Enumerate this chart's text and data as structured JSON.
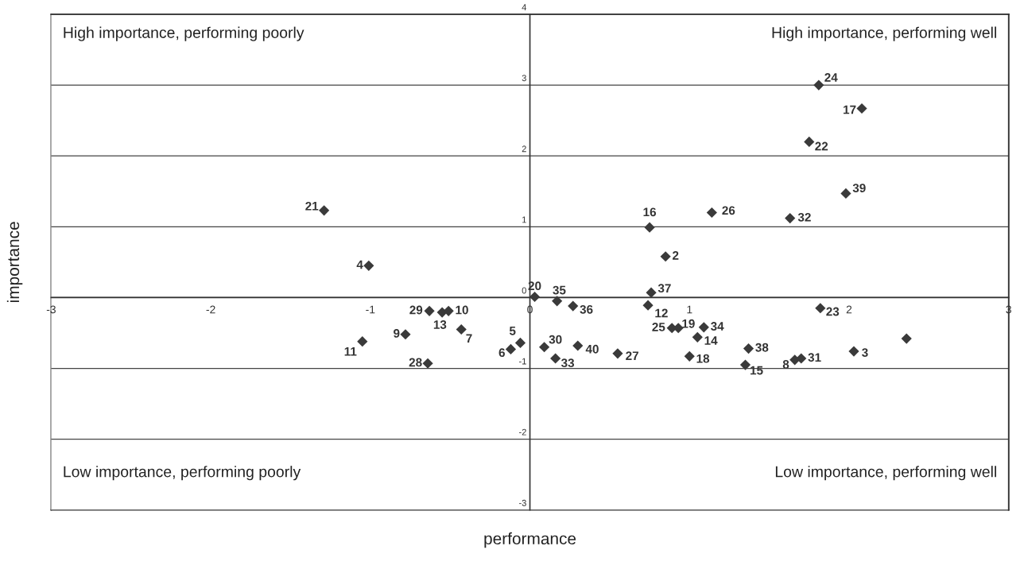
{
  "chart_data": {
    "type": "scatter",
    "xlabel": "performance",
    "ylabel": "importance",
    "xlim": [
      -3,
      3
    ],
    "ylim": [
      -3,
      4
    ],
    "xticks": [
      -3,
      -2,
      -1,
      0,
      1,
      2,
      3
    ],
    "yticks": [
      -3,
      -2,
      -1,
      0,
      1,
      2,
      3,
      4
    ],
    "grid": "y",
    "marker": "diamond",
    "series": [
      {
        "color": "#3a3a3a",
        "x": [
          1.81,
          2.08,
          1.75,
          1.98,
          1.63,
          1.14,
          0.75,
          0.85,
          0.76,
          0.74,
          1.82,
          -1.29,
          -1.01,
          0.03,
          0.17,
          0.27,
          -0.63,
          -0.55,
          -0.51,
          -0.43,
          -0.78,
          -1.05,
          -0.64,
          -0.06,
          -0.12,
          0.09,
          0.16,
          0.3,
          0.55,
          0.89,
          0.93,
          1.09,
          1.05,
          1.0,
          1.37,
          1.35,
          1.66,
          1.7,
          2.03,
          2.36
        ],
        "values": [
          3.0,
          2.67,
          2.2,
          1.47,
          1.12,
          1.2,
          0.99,
          0.58,
          0.07,
          -0.11,
          -0.15,
          1.23,
          0.45,
          0.01,
          -0.05,
          -0.12,
          -0.19,
          -0.21,
          -0.19,
          -0.45,
          -0.52,
          -0.62,
          -0.93,
          -0.64,
          -0.73,
          -0.7,
          -0.86,
          -0.68,
          -0.79,
          -0.43,
          -0.43,
          -0.42,
          -0.56,
          -0.83,
          -0.72,
          -0.95,
          -0.88,
          -0.86,
          -0.76,
          -0.58
        ]
      }
    ],
    "annotations": [
      "High importance, performing poorly",
      "High importance, performing well",
      "Low importance, performing poorly",
      "Low importance, performing well",
      {
        "text": "24",
        "x": 1.81,
        "y": 3.0
      },
      {
        "text": "17",
        "x": 2.08,
        "y": 2.67
      },
      {
        "text": "22",
        "x": 1.75,
        "y": 2.2
      },
      {
        "text": "39",
        "x": 1.98,
        "y": 1.47
      },
      {
        "text": "32",
        "x": 1.63,
        "y": 1.12
      },
      {
        "text": "26",
        "x": 1.14,
        "y": 1.2
      },
      {
        "text": "16",
        "x": 0.75,
        "y": 0.99
      },
      {
        "text": "2",
        "x": 0.85,
        "y": 0.58
      },
      {
        "text": "37",
        "x": 0.76,
        "y": 0.07
      },
      {
        "text": "12",
        "x": 0.74,
        "y": -0.11
      },
      {
        "text": "23",
        "x": 1.82,
        "y": -0.15
      },
      {
        "text": "21",
        "x": -1.29,
        "y": 1.23
      },
      {
        "text": "4",
        "x": -1.01,
        "y": 0.45
      },
      {
        "text": "20",
        "x": 0.03,
        "y": 0.01
      },
      {
        "text": "35",
        "x": 0.17,
        "y": -0.05
      },
      {
        "text": "36",
        "x": 0.27,
        "y": -0.12
      },
      {
        "text": "29",
        "x": -0.63,
        "y": -0.19
      },
      {
        "text": "13",
        "x": -0.55,
        "y": -0.21
      },
      {
        "text": "10",
        "x": -0.51,
        "y": -0.19
      },
      {
        "text": "7",
        "x": -0.43,
        "y": -0.45
      },
      {
        "text": "9",
        "x": -0.78,
        "y": -0.52
      },
      {
        "text": "11",
        "x": -1.05,
        "y": -0.62
      },
      {
        "text": "28",
        "x": -0.64,
        "y": -0.93
      },
      {
        "text": "5",
        "x": -0.06,
        "y": -0.64
      },
      {
        "text": "6",
        "x": -0.12,
        "y": -0.73
      },
      {
        "text": "30",
        "x": 0.09,
        "y": -0.7
      },
      {
        "text": "33",
        "x": 0.16,
        "y": -0.86
      },
      {
        "text": "40",
        "x": 0.3,
        "y": -0.68
      },
      {
        "text": "27",
        "x": 0.55,
        "y": -0.79
      },
      {
        "text": "25",
        "x": 0.89,
        "y": -0.43
      },
      {
        "text": "19",
        "x": 0.93,
        "y": -0.43
      },
      {
        "text": "34",
        "x": 1.09,
        "y": -0.42
      },
      {
        "text": "14",
        "x": 1.05,
        "y": -0.56
      },
      {
        "text": "18",
        "x": 1.0,
        "y": -0.83
      },
      {
        "text": "38",
        "x": 1.37,
        "y": -0.72
      },
      {
        "text": "15",
        "x": 1.35,
        "y": -0.95
      },
      {
        "text": "8",
        "x": 1.66,
        "y": -0.88
      },
      {
        "text": "31",
        "x": 1.7,
        "y": -0.86
      },
      {
        "text": "3",
        "x": 2.03,
        "y": -0.76
      }
    ]
  }
}
